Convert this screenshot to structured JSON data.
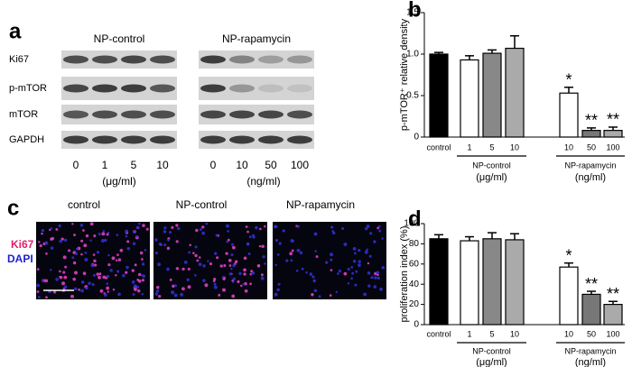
{
  "panels": {
    "a": "a",
    "b": "b",
    "c": "c",
    "d": "d"
  },
  "blot": {
    "groups": [
      {
        "name": "NP-control",
        "lanes": [
          "0",
          "1",
          "5",
          "10"
        ],
        "unit": "(μg/ml)"
      },
      {
        "name": "NP-rapamycin",
        "lanes": [
          "0",
          "10",
          "50",
          "100"
        ],
        "unit": "(ng/ml)"
      }
    ],
    "rows": [
      "Ki67",
      "p-mTOR",
      "mTOR",
      "GAPDH"
    ]
  },
  "micrographs": {
    "titles": [
      "control",
      "NP-control",
      "NP-rapamycin"
    ],
    "stain_labels": [
      "Ki67",
      "DAPI"
    ]
  },
  "chart_data": [
    {
      "type": "bar",
      "ylabel": "p-mTOR⁺ relative density",
      "categories": [
        "control",
        "1",
        "5",
        "10",
        "10",
        "50",
        "100"
      ],
      "values": [
        1.0,
        0.93,
        1.01,
        1.07,
        0.53,
        0.08,
        0.08
      ],
      "errors": [
        0.02,
        0.05,
        0.04,
        0.15,
        0.07,
        0.03,
        0.04
      ],
      "colors": [
        "#000000",
        "#ffffff",
        "#888888",
        "#aaaaaa",
        "#ffffff",
        "#777777",
        "#aaaaaa"
      ],
      "annotations": [
        null,
        null,
        null,
        null,
        "*",
        "**",
        "**"
      ],
      "groups": [
        {
          "name": "NP-control",
          "unit": "(μg/ml)"
        },
        {
          "name": "NP-rapamycin",
          "unit": "(ng/ml)"
        }
      ],
      "ylim": [
        0,
        1.5
      ],
      "yticks": [
        0,
        0.5,
        {
          "value": 1,
          "label": "1.0"
        },
        1.5
      ]
    },
    {
      "type": "bar",
      "ylabel": "proliferation index (%)",
      "categories": [
        "control",
        "1",
        "5",
        "10",
        "10",
        "50",
        "100"
      ],
      "values": [
        85,
        83,
        85,
        84,
        57,
        30,
        20
      ],
      "errors": [
        4,
        4,
        6,
        6,
        4,
        3,
        3
      ],
      "colors": [
        "#000000",
        "#ffffff",
        "#888888",
        "#aaaaaa",
        "#ffffff",
        "#777777",
        "#aaaaaa"
      ],
      "annotations": [
        null,
        null,
        null,
        null,
        "*",
        "**",
        "**"
      ],
      "groups": [
        {
          "name": "NP-control",
          "unit": "(μg/ml)"
        },
        {
          "name": "NP-rapamycin",
          "unit": "(ng/ml)"
        }
      ],
      "ylim": [
        0,
        100
      ],
      "yticks": [
        0,
        20,
        40,
        60,
        80,
        100
      ]
    }
  ]
}
